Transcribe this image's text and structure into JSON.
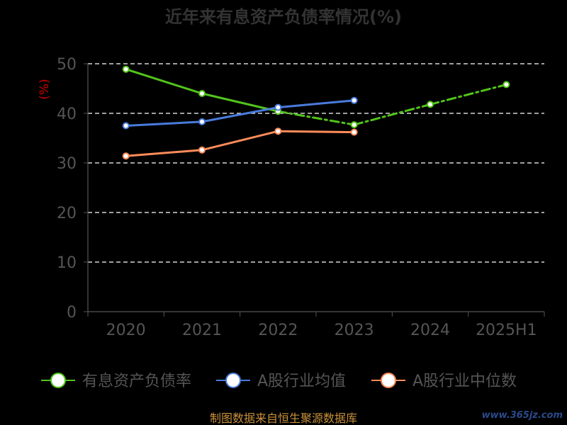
{
  "chart_data": {
    "type": "line",
    "title": "近年来有息资产负债率情况(%)",
    "ylabel": "(%)",
    "xlabel": "",
    "categories": [
      "2020",
      "2021",
      "2022",
      "2023",
      "2024",
      "2025H1"
    ],
    "ylim": [
      0,
      50
    ],
    "yticks": [
      "0",
      "10",
      "20",
      "30",
      "40",
      "50"
    ],
    "grid": true,
    "legend_position": "bottom",
    "series": [
      {
        "name": "有息资产负债率",
        "color": "#52c41a",
        "values": [
          48.9,
          44.0,
          40.4,
          37.7,
          41.8,
          45.8
        ],
        "dashed_after_index": 2
      },
      {
        "name": "A股行业均值",
        "color": "#4a7bdc",
        "values": [
          37.5,
          38.3,
          41.2,
          42.6,
          null,
          null
        ]
      },
      {
        "name": "A股行业中位数",
        "color": "#ff8c5a",
        "values": [
          31.4,
          32.6,
          36.4,
          36.2,
          null,
          null
        ]
      }
    ]
  },
  "footer": {
    "source": "制图数据来自恒生聚源数据库",
    "watermark": "www.365jz.com"
  },
  "colors": {
    "background": "#000000",
    "title": "#333333",
    "axis_text": "#555555",
    "ylabel": "#cc0000",
    "grid": "#ffffff",
    "source": "#c8913a"
  }
}
